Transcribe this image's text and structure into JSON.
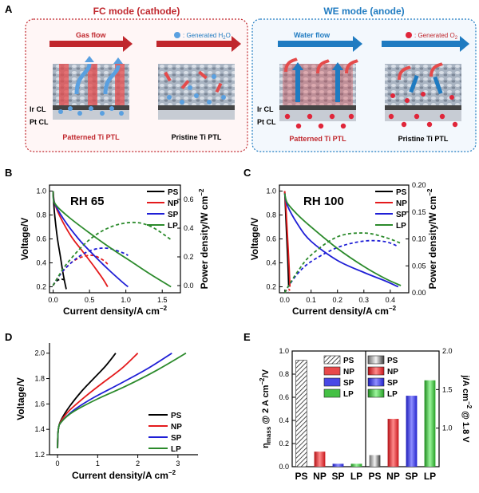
{
  "panelA": {
    "letter": "A",
    "fc": {
      "title": "FC mode (cathode)",
      "flow_label": "Gas flow",
      "generated_label": ": Generated H",
      "generated_sub": "2",
      "generated_suffix": "O",
      "layer_top": "Ir CL",
      "layer_bottom": "Pt CL",
      "left_caption": "Patterned Ti PTL",
      "right_caption": "Pristine Ti PTL",
      "color": "#c0272d"
    },
    "we": {
      "title": "WE mode (anode)",
      "flow_label": "Water flow",
      "generated_label": ": Generated O",
      "generated_sub": "2",
      "layer_top": "Ir CL",
      "layer_bottom": "Pt CL",
      "left_caption": "Patterned Ti PTL",
      "right_caption": "Pristine Ti PTL",
      "color": "#1f7bc1"
    }
  },
  "series_colors": {
    "PS": "#000000",
    "NP": "#e41a1c",
    "SP": "#1f1fd6",
    "LP": "#2b8a2b"
  },
  "chart_data": [
    {
      "panel": "B",
      "type": "line",
      "annotation": "RH 65",
      "xlabel": "Current density/A cm",
      "xlabel_sup": "−2",
      "ylabel": "Voltage/V",
      "y2label": "Power density/W cm",
      "y2label_sup": "−2",
      "xlim": [
        -0.05,
        1.75
      ],
      "ylim": [
        0.15,
        1.05
      ],
      "y2lim": [
        -0.05,
        0.7
      ],
      "xticks": [
        "0.0",
        "0.5",
        "1.0",
        "1.5"
      ],
      "yticks": [
        "0.2",
        "0.4",
        "0.6",
        "0.8",
        "1.0"
      ],
      "y2ticks": [
        "0.0",
        "0.2",
        "0.4",
        "0.6"
      ],
      "legend": [
        "PS",
        "NP",
        "SP",
        "LP"
      ],
      "series": [
        {
          "name": "PS",
          "x": [
            0.0,
            0.01,
            0.03,
            0.06,
            0.1,
            0.14,
            0.18
          ],
          "voltage": [
            1.0,
            0.88,
            0.75,
            0.6,
            0.45,
            0.3,
            0.18
          ],
          "power": [
            0.0,
            0.009,
            0.023,
            0.036,
            0.045,
            0.042,
            0.032
          ]
        },
        {
          "name": "NP",
          "x": [
            0.0,
            0.02,
            0.1,
            0.25,
            0.4,
            0.55,
            0.68,
            0.75
          ],
          "voltage": [
            1.0,
            0.9,
            0.78,
            0.62,
            0.5,
            0.38,
            0.27,
            0.2
          ],
          "power": [
            0.0,
            0.02,
            0.08,
            0.16,
            0.2,
            0.21,
            0.18,
            0.15
          ]
        },
        {
          "name": "SP",
          "x": [
            0.0,
            0.02,
            0.15,
            0.35,
            0.55,
            0.75,
            0.95,
            1.03
          ],
          "voltage": [
            1.0,
            0.9,
            0.76,
            0.6,
            0.47,
            0.35,
            0.24,
            0.2
          ],
          "power": [
            0.0,
            0.02,
            0.11,
            0.2,
            0.25,
            0.26,
            0.23,
            0.21
          ]
        },
        {
          "name": "LP",
          "x": [
            0.0,
            0.02,
            0.2,
            0.5,
            0.8,
            1.1,
            1.35,
            1.62
          ],
          "voltage": [
            1.0,
            0.9,
            0.79,
            0.65,
            0.52,
            0.4,
            0.3,
            0.2
          ],
          "power": [
            0.0,
            0.02,
            0.16,
            0.32,
            0.41,
            0.44,
            0.41,
            0.32
          ]
        }
      ]
    },
    {
      "panel": "C",
      "type": "line",
      "annotation": "RH 100",
      "xlabel": "Current density/A cm",
      "xlabel_sup": "−2",
      "ylabel": "Voltage/V",
      "y2label": "Power density/W cm",
      "y2label_sup": "−2",
      "xlim": [
        -0.02,
        0.47
      ],
      "ylim": [
        0.15,
        1.05
      ],
      "y2lim": [
        0.0,
        0.2
      ],
      "xticks": [
        "0.0",
        "0.1",
        "0.2",
        "0.3",
        "0.4"
      ],
      "yticks": [
        "0.2",
        "0.4",
        "0.6",
        "0.8",
        "1.0"
      ],
      "y2ticks": [
        "0.00",
        "0.05",
        "0.10",
        "0.15",
        "0.20"
      ],
      "legend": [
        "PS",
        "NP",
        "SP",
        "LP"
      ],
      "series": [
        {
          "name": "PS",
          "x": [
            0.0,
            0.003,
            0.007,
            0.012,
            0.015
          ],
          "voltage": [
            1.0,
            0.85,
            0.65,
            0.4,
            0.2
          ],
          "power": [
            0.0,
            0.0026,
            0.0046,
            0.0048,
            0.003
          ]
        },
        {
          "name": "NP",
          "x": [
            0.0,
            0.005,
            0.01,
            0.016,
            0.02
          ],
          "voltage": [
            1.0,
            0.85,
            0.65,
            0.4,
            0.2
          ],
          "power": [
            0.0,
            0.0043,
            0.0065,
            0.0064,
            0.004
          ]
        },
        {
          "name": "SP",
          "x": [
            0.0,
            0.01,
            0.05,
            0.1,
            0.2,
            0.3,
            0.38,
            0.43
          ],
          "voltage": [
            0.98,
            0.88,
            0.72,
            0.58,
            0.42,
            0.32,
            0.25,
            0.2
          ],
          "power": [
            0.0,
            0.009,
            0.036,
            0.058,
            0.084,
            0.096,
            0.095,
            0.086
          ]
        },
        {
          "name": "LP",
          "x": [
            0.0,
            0.01,
            0.05,
            0.1,
            0.2,
            0.3,
            0.38,
            0.44
          ],
          "voltage": [
            0.98,
            0.9,
            0.8,
            0.7,
            0.52,
            0.37,
            0.27,
            0.21
          ],
          "power": [
            0.0,
            0.009,
            0.04,
            0.07,
            0.104,
            0.111,
            0.103,
            0.092
          ]
        }
      ]
    },
    {
      "panel": "D",
      "type": "line",
      "xlabel": "Current density/A cm",
      "xlabel_sup": "−2",
      "ylabel": "Voltage/V",
      "xlim": [
        -0.2,
        3.5
      ],
      "ylim": [
        1.2,
        2.08
      ],
      "xticks": [
        "0",
        "1",
        "2",
        "3"
      ],
      "yticks": [
        "1.2",
        "1.4",
        "1.6",
        "1.8",
        "2.0"
      ],
      "legend": [
        "PS",
        "NP",
        "SP",
        "LP"
      ],
      "series": [
        {
          "name": "PS",
          "x": [
            0.0,
            0.02,
            0.1,
            0.3,
            0.6,
            0.9,
            1.2,
            1.45
          ],
          "voltage": [
            1.25,
            1.4,
            1.48,
            1.58,
            1.7,
            1.8,
            1.9,
            2.0
          ]
        },
        {
          "name": "NP",
          "x": [
            0.0,
            0.02,
            0.1,
            0.3,
            0.7,
            1.1,
            1.6,
            2.0
          ],
          "voltage": [
            1.25,
            1.4,
            1.47,
            1.55,
            1.66,
            1.76,
            1.88,
            2.0
          ]
        },
        {
          "name": "SP",
          "x": [
            0.0,
            0.02,
            0.1,
            0.4,
            0.9,
            1.5,
            2.2,
            2.85
          ],
          "voltage": [
            1.25,
            1.4,
            1.46,
            1.55,
            1.65,
            1.75,
            1.87,
            2.0
          ]
        },
        {
          "name": "LP",
          "x": [
            0.0,
            0.02,
            0.1,
            0.4,
            1.0,
            1.7,
            2.5,
            3.2
          ],
          "voltage": [
            1.25,
            1.4,
            1.46,
            1.54,
            1.64,
            1.74,
            1.87,
            2.0
          ]
        }
      ]
    },
    {
      "panel": "E",
      "type": "bar",
      "ylabel": "η",
      "ylabel_sub": "mass",
      "ylabel_rest": " @ 2 A cm",
      "ylabel_sup": "−2",
      "ylabel_tail": "/V",
      "y2label": "j/A cm",
      "y2label_sup": "−2",
      "y2label_tail": " @ 1.8 V",
      "left": {
        "categories": [
          "PS",
          "NP",
          "SP",
          "LP"
        ],
        "values": [
          0.92,
          0.13,
          0.025,
          0.025
        ],
        "ylim": [
          0.0,
          1.0
        ],
        "yticks": [
          "0.0",
          "0.2",
          "0.4",
          "0.6",
          "0.8",
          "1.0"
        ],
        "legend": [
          "PS",
          "NP",
          "SP",
          "LP"
        ]
      },
      "right": {
        "categories": [
          "PS",
          "NP",
          "SP",
          "LP"
        ],
        "values": [
          0.65,
          1.12,
          1.42,
          1.62
        ],
        "ylim": [
          0.5,
          2.0
        ],
        "yticks": [
          "1.0",
          "1.5",
          "2.0"
        ],
        "legend": [
          "PS",
          "NP",
          "SP",
          "LP"
        ]
      }
    }
  ]
}
